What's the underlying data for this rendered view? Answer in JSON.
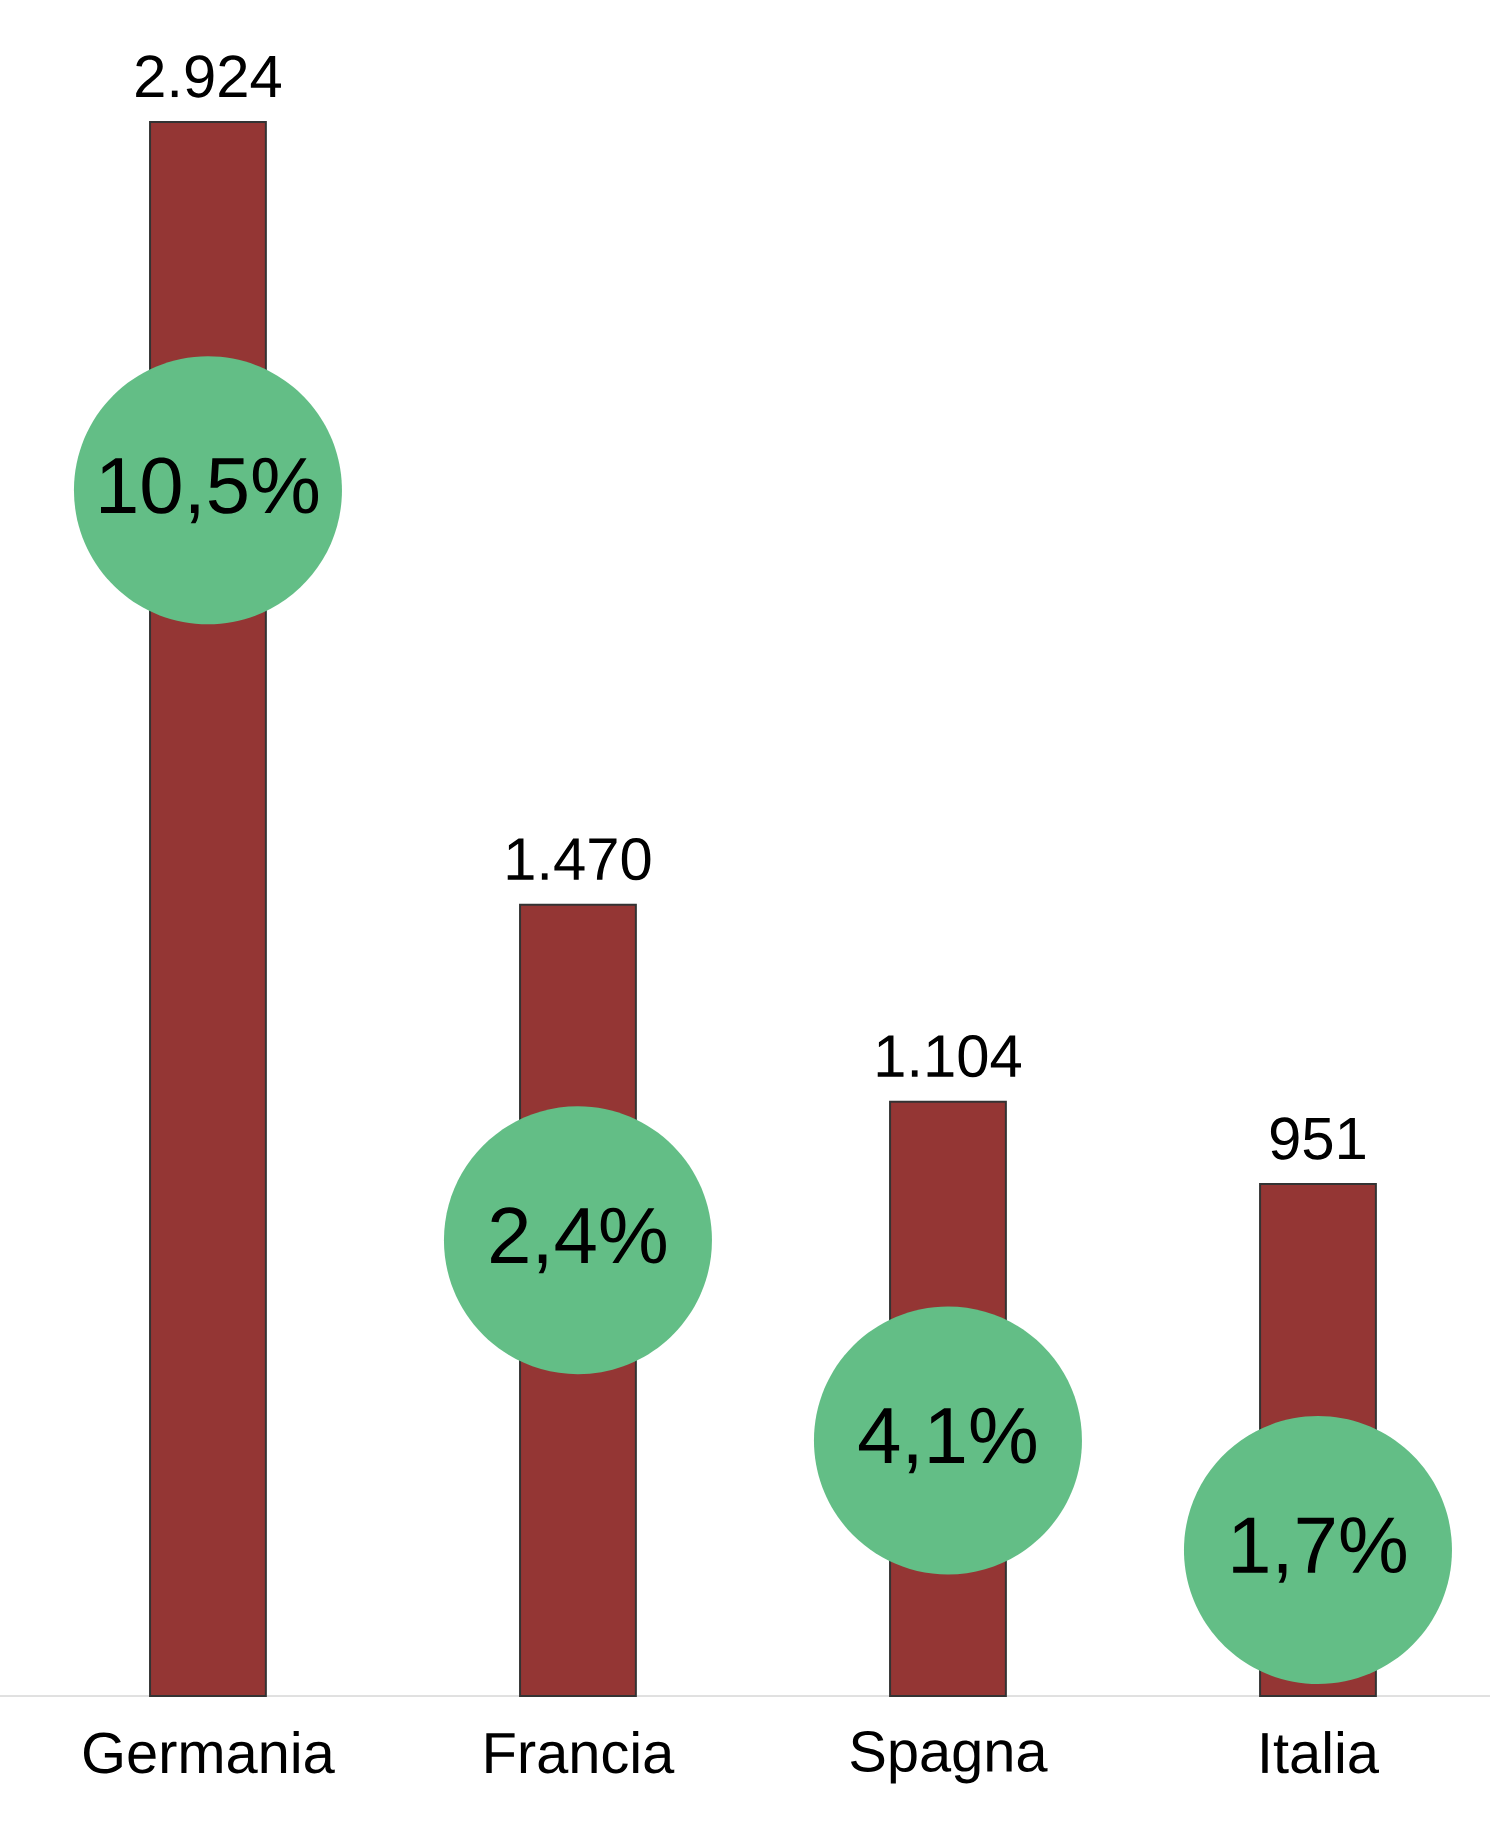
{
  "chart_data": {
    "type": "bar",
    "categories": [
      "Germania",
      "Francia",
      "Spagna",
      "Italia"
    ],
    "values": [
      2924,
      1470,
      1104,
      951
    ],
    "value_labels": [
      "2.924",
      "1.470",
      "1.104",
      "951"
    ],
    "color": "#943634",
    "annotations": [
      "10,5%",
      "2,4%",
      "4,1%",
      "1,7%"
    ]
  }
}
